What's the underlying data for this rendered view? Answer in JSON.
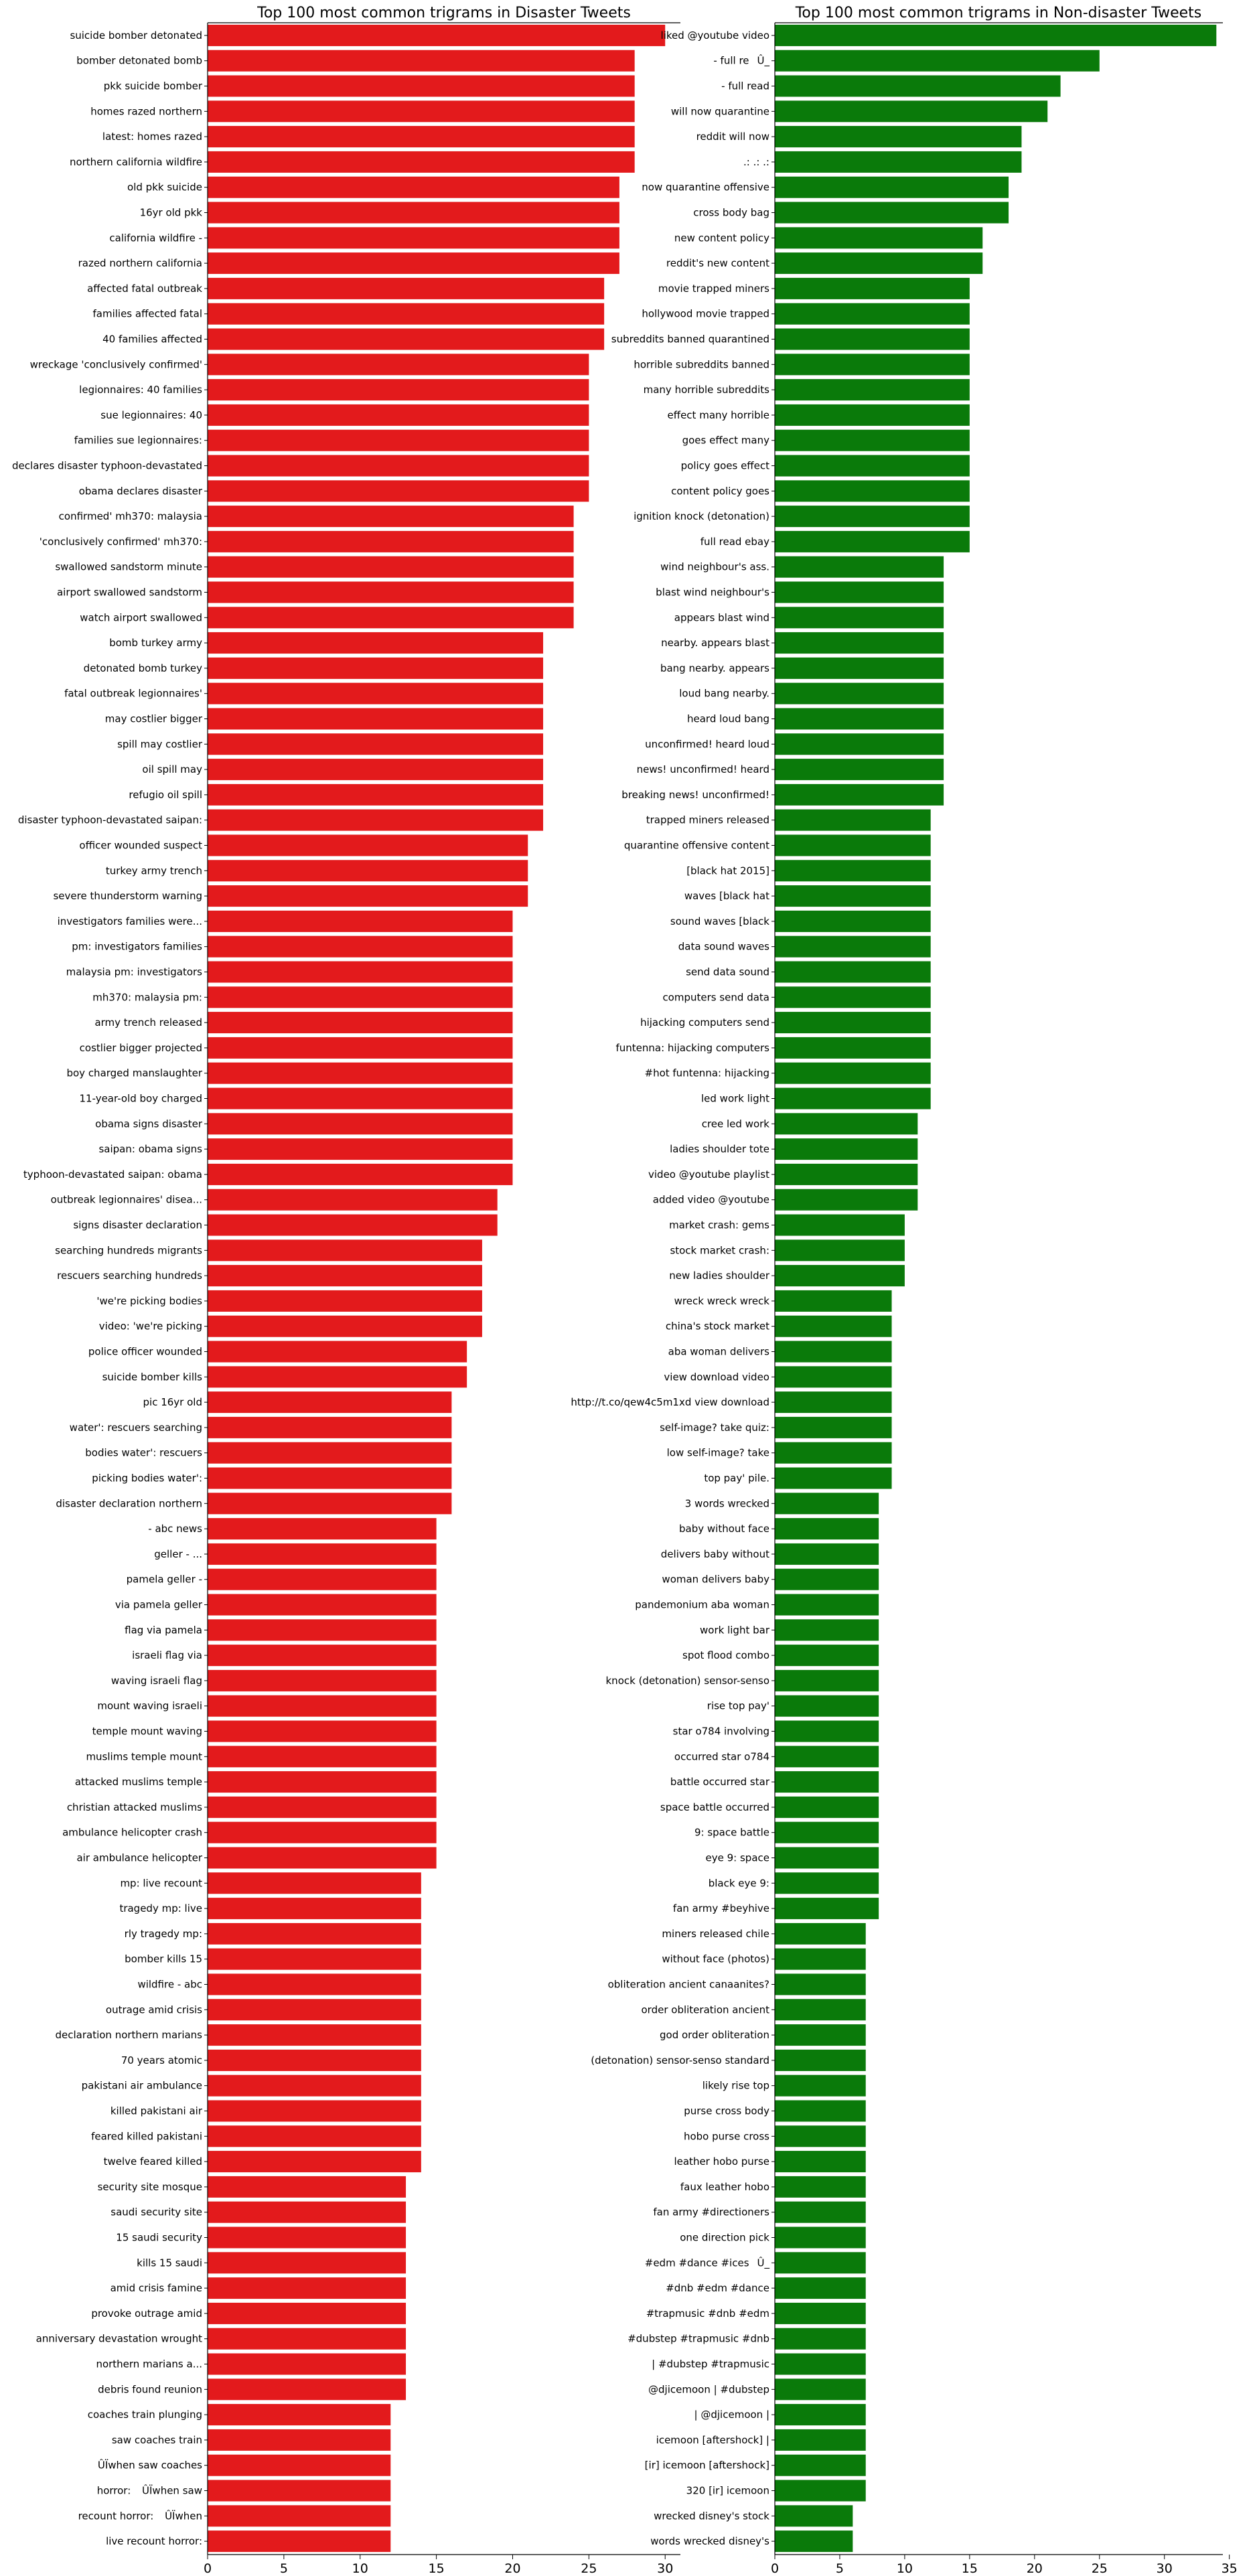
{
  "chart_data": [
    {
      "type": "bar",
      "orientation": "horizontal",
      "title": "Top 100 most common trigrams in Disaster Tweets",
      "xlabel": "",
      "ylabel": "",
      "color": "#e31a1c",
      "xlim": [
        0,
        31
      ],
      "xticks": [
        0,
        5,
        10,
        15,
        20,
        25,
        30
      ],
      "categories": [
        "suicide bomber detonated",
        "bomber detonated bomb",
        "pkk suicide bomber",
        "homes razed northern",
        "latest: homes razed",
        "northern california wildfire",
        "old pkk suicide",
        "16yr old pkk",
        "california wildfire -",
        "razed northern california",
        "affected fatal outbreak",
        "families affected fatal",
        "40 families affected",
        "wreckage 'conclusively confirmed'",
        "legionnaires: 40 families",
        "sue legionnaires: 40",
        "families sue legionnaires:",
        "declares disaster typhoon-devastated",
        "obama declares disaster",
        "confirmed' mh370: malaysia",
        "'conclusively confirmed' mh370:",
        "swallowed sandstorm minute",
        "airport swallowed sandstorm",
        "watch airport swallowed",
        "bomb turkey army",
        "detonated bomb turkey",
        "fatal outbreak legionnaires'",
        "may costlier bigger",
        "spill may costlier",
        "oil spill may",
        "refugio oil spill",
        "disaster typhoon-devastated saipan:",
        "officer wounded suspect",
        "turkey army trench",
        "severe thunderstorm warning",
        "investigators families were...",
        "pm: investigators families",
        "malaysia pm: investigators",
        "mh370: malaysia pm:",
        "army trench released",
        "costlier bigger projected",
        "boy charged manslaughter",
        "11-year-old boy charged",
        "obama signs disaster",
        "saipan: obama signs",
        "typhoon-devastated saipan: obama",
        "outbreak legionnaires' disea...",
        "signs disaster declaration",
        "searching hundreds migrants",
        "rescuers searching hundreds",
        "'we're picking bodies",
        "video: 'we're picking",
        "police officer wounded",
        "suicide bomber kills",
        "pic 16yr old",
        "water': rescuers searching",
        "bodies water': rescuers",
        "picking bodies water':",
        "disaster declaration northern",
        "- abc news",
        "geller - ...",
        "pamela geller -",
        "via pamela geller",
        "flag via pamela",
        "israeli flag via",
        "waving israeli flag",
        "mount waving israeli",
        "temple mount waving",
        "muslims temple mount",
        "attacked muslims temple",
        "christian attacked muslims",
        "ambulance helicopter crash",
        "air ambulance helicopter",
        "mp: live recount",
        "tragedy mp: live",
        "rly tragedy mp:",
        "bomber kills 15",
        "wildfire - abc",
        "outrage amid crisis",
        "declaration northern marians",
        "70 years atomic",
        "pakistani air ambulance",
        "killed pakistani air",
        "feared killed pakistani",
        "twelve feared killed",
        "security site mosque",
        "saudi security site",
        "15 saudi security",
        "kills 15 saudi",
        "amid crisis famine",
        "provoke outrage amid",
        "anniversary devastation wrought",
        "northern marians a...",
        "debris found reunion",
        "coaches train plunging",
        "saw coaches train",
        "ÛÏwhen saw coaches",
        "horror: ÛÏwhen saw",
        "recount horror: ÛÏwhen",
        "live recount horror:"
      ],
      "values": [
        30,
        28,
        28,
        28,
        28,
        28,
        27,
        27,
        27,
        27,
        26,
        26,
        26,
        25,
        25,
        25,
        25,
        25,
        25,
        24,
        24,
        24,
        24,
        24,
        22,
        22,
        22,
        22,
        22,
        22,
        22,
        22,
        21,
        21,
        21,
        20,
        20,
        20,
        20,
        20,
        20,
        20,
        20,
        20,
        20,
        20,
        19,
        19,
        18,
        18,
        18,
        18,
        17,
        17,
        16,
        16,
        16,
        16,
        16,
        15,
        15,
        15,
        15,
        15,
        15,
        15,
        15,
        15,
        15,
        15,
        15,
        15,
        15,
        14,
        14,
        14,
        14,
        14,
        14,
        14,
        14,
        14,
        14,
        14,
        14,
        13,
        13,
        13,
        13,
        13,
        13,
        13,
        13,
        13,
        12,
        12,
        12,
        12,
        12,
        12
      ]
    },
    {
      "type": "bar",
      "orientation": "horizontal",
      "title": "Top 100 most common trigrams in Non-disaster Tweets",
      "xlabel": "",
      "ylabel": "",
      "color": "#0a7a0a",
      "xlim": [
        0,
        34.5
      ],
      "xticks": [
        0,
        5,
        10,
        15,
        20,
        25,
        30,
        35
      ],
      "categories": [
        "liked @youtube video",
        "- full reÛ_",
        "- full read",
        "will now quarantine",
        "reddit will now",
        ".: .: .:",
        "now quarantine offensive",
        "cross body bag",
        "new content policy",
        "reddit's new content",
        "movie trapped miners",
        "hollywood movie trapped",
        "subreddits banned quarantined",
        "horrible subreddits banned",
        "many horrible subreddits",
        "effect many horrible",
        "goes effect many",
        "policy goes effect",
        "content policy goes",
        "ignition knock (detonation)",
        "full read ebay",
        "wind neighbour's ass.",
        "blast wind neighbour's",
        "appears blast wind",
        "nearby. appears blast",
        "bang nearby. appears",
        "loud bang nearby.",
        "heard loud bang",
        "unconfirmed! heard loud",
        "news! unconfirmed! heard",
        "breaking news! unconfirmed!",
        "trapped miners released",
        "quarantine offensive content",
        "[black hat 2015]",
        "waves [black hat",
        "sound waves [black",
        "data sound waves",
        "send data sound",
        "computers send data",
        "hijacking computers send",
        "funtenna: hijacking computers",
        "#hot funtenna: hijacking",
        "led work light",
        "cree led work",
        "ladies shoulder tote",
        "video @youtube playlist",
        "added video @youtube",
        "market crash: gems",
        "stock market crash:",
        "new ladies shoulder",
        "wreck wreck wreck",
        "china's stock market",
        "aba woman delivers",
        "view download video",
        "http://t.co/qew4c5m1xd view download",
        "self-image? take quiz:",
        "low self-image? take",
        "top pay' pile.",
        "3 words wrecked",
        "baby without face",
        "delivers baby without",
        "woman delivers baby",
        "pandemonium aba woman",
        "work light bar",
        "spot flood combo",
        "knock (detonation) sensor-senso",
        "rise top pay'",
        "star o784 involving",
        "occurred star o784",
        "battle occurred star",
        "space battle occurred",
        "9: space battle",
        "eye 9: space",
        "black eye 9:",
        "fan army #beyhive",
        "miners released chile",
        "without face (photos)",
        "obliteration ancient canaanites?",
        "order obliteration ancient",
        "god order obliteration",
        "(detonation) sensor-senso standard",
        "likely rise top",
        "purse cross body",
        "hobo purse cross",
        "leather hobo purse",
        "faux leather hobo",
        "fan army #directioners",
        "one direction pick",
        "#edm #dance #icesÛ_",
        "#dnb #edm #dance",
        "#trapmusic #dnb #edm",
        "#dubstep #trapmusic #dnb",
        "| #dubstep #trapmusic",
        "@djicemoon | #dubstep",
        "| @djicemoon |",
        "icemoon [aftershock] |",
        "[ir] icemoon [aftershock]",
        "320 [ir] icemoon",
        "wrecked disney's stock",
        "words wrecked disney's"
      ],
      "values": [
        34,
        25,
        22,
        21,
        19,
        19,
        18,
        18,
        16,
        16,
        15,
        15,
        15,
        15,
        15,
        15,
        15,
        15,
        15,
        15,
        15,
        13,
        13,
        13,
        13,
        13,
        13,
        13,
        13,
        13,
        13,
        12,
        12,
        12,
        12,
        12,
        12,
        12,
        12,
        12,
        12,
        12,
        12,
        11,
        11,
        11,
        11,
        10,
        10,
        10,
        9,
        9,
        9,
        9,
        9,
        9,
        9,
        9,
        8,
        8,
        8,
        8,
        8,
        8,
        8,
        8,
        8,
        8,
        8,
        8,
        8,
        8,
        8,
        8,
        8,
        7,
        7,
        7,
        7,
        7,
        7,
        7,
        7,
        7,
        7,
        7,
        7,
        7,
        7,
        7,
        7,
        7,
        7,
        7,
        7,
        7,
        7,
        7,
        6,
        6
      ]
    }
  ]
}
